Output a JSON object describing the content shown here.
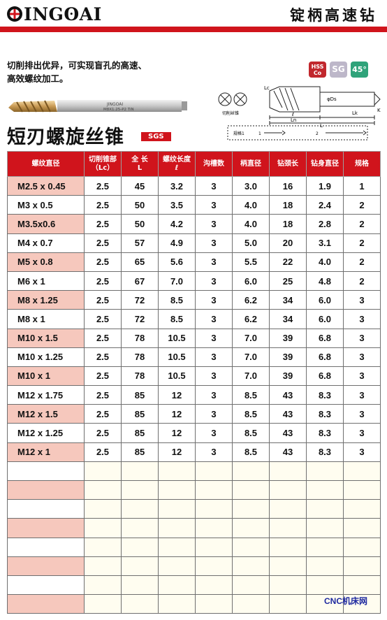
{
  "header": {
    "brand": {
      "pre": "",
      "mid": "INGʘAI"
    },
    "title": "锭柄高速钻"
  },
  "intro": {
    "line1": "切削排出优异，可实现盲孔的高速、",
    "line2": "高效螺纹加工。"
  },
  "badges": {
    "hss_top": "HSS",
    "hss_bottom": "Co",
    "sg": "SG",
    "angle": "45°"
  },
  "product_photo": {
    "brand_marking": "JINGOAI",
    "size_marking": "M8X1.25-P2 TiN"
  },
  "drawing": {
    "lc": "Lc",
    "ln": "Ln",
    "ds": "φDs",
    "lk": "Lk",
    "l": "L",
    "ell": "ℓ",
    "k": "K",
    "section_caption": "切削丝锥",
    "legend_1": "规格1",
    "legend_1_marker": "1",
    "legend_2": "2"
  },
  "product": {
    "name": "短刃螺旋丝锥",
    "tag": "SGS"
  },
  "table": {
    "headers": [
      {
        "line1": "螺纹直径",
        "line2": ""
      },
      {
        "line1": "切削锥部",
        "line2": "（Lc）"
      },
      {
        "line1": "全 长",
        "line2": "L"
      },
      {
        "line1": "螺纹长度",
        "line2": "ℓ"
      },
      {
        "line1": "沟槽数",
        "line2": ""
      },
      {
        "line1": "柄直径",
        "line2": ""
      },
      {
        "line1": "钻颈长",
        "line2": ""
      },
      {
        "line1": "钻身直径",
        "line2": ""
      },
      {
        "line1": "规格",
        "line2": ""
      }
    ],
    "rows": [
      [
        "M2.5 x 0.45",
        "2.5",
        "45",
        "3.2",
        "3",
        "3.0",
        "16",
        "1.9",
        "1"
      ],
      [
        "M3 x 0.5",
        "2.5",
        "50",
        "3.5",
        "3",
        "4.0",
        "18",
        "2.4",
        "2"
      ],
      [
        "M3.5x0.6",
        "2.5",
        "50",
        "4.2",
        "3",
        "4.0",
        "18",
        "2.8",
        "2"
      ],
      [
        "M4 x 0.7",
        "2.5",
        "57",
        "4.9",
        "3",
        "5.0",
        "20",
        "3.1",
        "2"
      ],
      [
        "M5 x 0.8",
        "2.5",
        "65",
        "5.6",
        "3",
        "5.5",
        "22",
        "4.0",
        "2"
      ],
      [
        "M6 x 1",
        "2.5",
        "67",
        "7.0",
        "3",
        "6.0",
        "25",
        "4.8",
        "2"
      ],
      [
        "M8 x 1.25",
        "2.5",
        "72",
        "8.5",
        "3",
        "6.2",
        "34",
        "6.0",
        "3"
      ],
      [
        "M8 x 1",
        "2.5",
        "72",
        "8.5",
        "3",
        "6.2",
        "34",
        "6.0",
        "3"
      ],
      [
        "M10 x 1.5",
        "2.5",
        "78",
        "10.5",
        "3",
        "7.0",
        "39",
        "6.8",
        "3"
      ],
      [
        "M10 x 1.25",
        "2.5",
        "78",
        "10.5",
        "3",
        "7.0",
        "39",
        "6.8",
        "3"
      ],
      [
        "M10 x 1",
        "2.5",
        "78",
        "10.5",
        "3",
        "7.0",
        "39",
        "6.8",
        "3"
      ],
      [
        "M12 x 1.75",
        "2.5",
        "85",
        "12",
        "3",
        "8.5",
        "43",
        "8.3",
        "3"
      ],
      [
        "M12 x 1.5",
        "2.5",
        "85",
        "12",
        "3",
        "8.5",
        "43",
        "8.3",
        "3"
      ],
      [
        "M12 x 1.25",
        "2.5",
        "85",
        "12",
        "3",
        "8.5",
        "43",
        "8.3",
        "3"
      ],
      [
        "M12 x 1",
        "2.5",
        "85",
        "12",
        "3",
        "8.5",
        "43",
        "8.3",
        "3"
      ]
    ],
    "empty_rows": 8
  },
  "watermark": "CNC机床网",
  "colors": {
    "accent_red": "#d0141c",
    "row_pink": "#f6c8bd",
    "empty_cell": "#fffdf0",
    "watermark_blue": "#1f2aa0",
    "tool_gold": "#c99a55"
  }
}
